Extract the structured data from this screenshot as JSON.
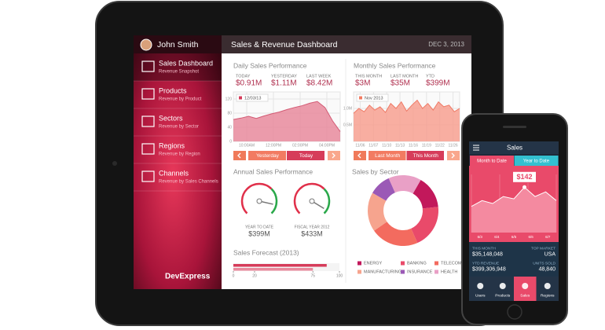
{
  "tablet": {
    "user": "John Smith",
    "title": "Sales & Revenue Dashboard",
    "date": "DEC 3, 2013",
    "nav": [
      {
        "label": "Sales Dashboard",
        "sub": "Revenue Snapshot"
      },
      {
        "label": "Products",
        "sub": "Revenue by Product"
      },
      {
        "label": "Sectors",
        "sub": "Revenue by Sector"
      },
      {
        "label": "Regions",
        "sub": "Revenue by Region"
      },
      {
        "label": "Channels",
        "sub": "Revenue by Sales Channels"
      }
    ],
    "brand": "DevExpress",
    "daily": {
      "title": "Daily Sales Performance",
      "stats": [
        {
          "label": "TODAY",
          "value": "$0.91M"
        },
        {
          "label": "YESTERDAY",
          "value": "$1.11M"
        },
        {
          "label": "LAST WEEK",
          "value": "$8.42M"
        }
      ],
      "legend": "12/03/13",
      "ylim": [
        0,
        140
      ],
      "yticks": [
        0,
        40,
        80,
        120
      ],
      "xticks": [
        "10:00AM",
        "12:00PM",
        "02:00PM",
        "04:00PM"
      ],
      "values": [
        62,
        66,
        71,
        65,
        72,
        78,
        83,
        90,
        96,
        101,
        108,
        113,
        96,
        58,
        28
      ],
      "buttons": [
        "Yesterday",
        "Today"
      ]
    },
    "monthly": {
      "title": "Monthly Sales Performance",
      "stats": [
        {
          "label": "THIS MONTH",
          "value": "$3M"
        },
        {
          "label": "LAST MONTH",
          "value": "$35M"
        },
        {
          "label": "YTD",
          "value": "$399M"
        }
      ],
      "legend": "Nov 2013",
      "ylim": [
        0,
        1.5
      ],
      "yticks": [
        {
          "value": 0.5,
          "label": "0.5M"
        },
        {
          "value": 1,
          "label": "1.0M"
        }
      ],
      "xticks": [
        "11/06",
        "11/07",
        "11/10",
        "11/13",
        "11/16",
        "11/19",
        "11/22",
        "11/26"
      ],
      "values": [
        0.85,
        1.0,
        0.9,
        1.1,
        0.95,
        1.05,
        0.88,
        1.15,
        1.0,
        1.2,
        0.92,
        1.1,
        1.25,
        1.0,
        1.15,
        0.95,
        1.2,
        1.05,
        1.1,
        0.9,
        1.0
      ],
      "buttons": [
        "Last Month",
        "This Month"
      ]
    },
    "annual": {
      "title": "Annual Sales Performance",
      "gauges": [
        {
          "label": "YEAR TO DATE",
          "value": "$399M",
          "needle": 88
        },
        {
          "label": "FISCAL YEAR 2012",
          "value": "$433M",
          "needle": 95
        }
      ]
    },
    "sector": {
      "title": "Sales by Sector",
      "segments": [
        {
          "name": "ENERGY",
          "value": 15,
          "color": "#c2185b"
        },
        {
          "name": "BANKING",
          "value": 20,
          "color": "#e94a6a"
        },
        {
          "name": "TELECOM",
          "value": 22,
          "color": "#f36b5f"
        },
        {
          "name": "MANUFACTURING",
          "value": 18,
          "color": "#f6a48e"
        },
        {
          "name": "INSURANCE",
          "value": 10,
          "color": "#9b59b6"
        },
        {
          "name": "HEALTH",
          "value": 15,
          "color": "#e9a0c6"
        }
      ]
    },
    "forecast": {
      "title": "Sales Forecast (2013)",
      "xlim": [
        0,
        100
      ],
      "xticks": [
        0,
        20,
        75,
        100
      ],
      "values": [
        88,
        75
      ]
    }
  },
  "phone": {
    "title": "Sales",
    "tabs": [
      "Month to Date",
      "Year to Date"
    ],
    "price": "$142",
    "ylim": [
      0,
      100
    ],
    "values": [
      45,
      55,
      50,
      62,
      58,
      78,
      62,
      70,
      55
    ],
    "xticks": [
      "6/3",
      "6/4",
      "6/5",
      "6/6",
      "6/7"
    ],
    "stats": [
      {
        "label": "THIS MONTH",
        "value": "$35,148,048"
      },
      {
        "label": "TOP MARKET",
        "value": "USA"
      },
      {
        "label": "YTD REVENUE",
        "value": "$399,306,948"
      },
      {
        "label": "UNITS SOLD",
        "value": "48,840"
      }
    ],
    "nav": [
      "Users",
      "Products",
      "Sales",
      "Regions"
    ]
  }
}
